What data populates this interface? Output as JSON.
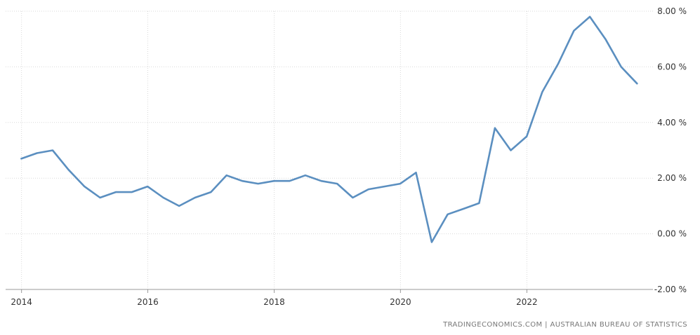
{
  "source_text": "TRADINGECONOMICS.COM  |  AUSTRALIAN BUREAU OF STATISTICS",
  "colors": {
    "series": "#5b8fc0",
    "grid": "#d9d9d9"
  },
  "chart_data": {
    "type": "line",
    "title": "",
    "xlabel": "",
    "ylabel": "",
    "ylim": [
      -2,
      8
    ],
    "xlim": [
      "2013-10-01",
      "2023-12-31"
    ],
    "grid": true,
    "legend": "none",
    "y_ticks": [
      {
        "value": 8,
        "label": "8.00 %"
      },
      {
        "value": 6,
        "label": "6.00 %"
      },
      {
        "value": 4,
        "label": "4.00 %"
      },
      {
        "value": 2,
        "label": "2.00 %"
      },
      {
        "value": 0,
        "label": "0.00 %"
      },
      {
        "value": -2,
        "label": "-2.00 %"
      }
    ],
    "x_ticks": [
      {
        "value": "2014-01-01",
        "label": "2014"
      },
      {
        "value": "2016-01-01",
        "label": "2016"
      },
      {
        "value": "2018-01-01",
        "label": "2018"
      },
      {
        "value": "2020-01-01",
        "label": "2020"
      },
      {
        "value": "2022-01-01",
        "label": "2022"
      }
    ],
    "series": [
      {
        "points": [
          {
            "x": "2013-12-31",
            "y": 2.7
          },
          {
            "x": "2014-03-31",
            "y": 2.9
          },
          {
            "x": "2014-06-30",
            "y": 3.0
          },
          {
            "x": "2014-09-30",
            "y": 2.3
          },
          {
            "x": "2014-12-31",
            "y": 1.7
          },
          {
            "x": "2015-03-31",
            "y": 1.3
          },
          {
            "x": "2015-06-30",
            "y": 1.5
          },
          {
            "x": "2015-09-30",
            "y": 1.5
          },
          {
            "x": "2015-12-31",
            "y": 1.7
          },
          {
            "x": "2016-03-31",
            "y": 1.3
          },
          {
            "x": "2016-06-30",
            "y": 1.0
          },
          {
            "x": "2016-09-30",
            "y": 1.3
          },
          {
            "x": "2016-12-31",
            "y": 1.5
          },
          {
            "x": "2017-03-31",
            "y": 2.1
          },
          {
            "x": "2017-06-30",
            "y": 1.9
          },
          {
            "x": "2017-09-30",
            "y": 1.8
          },
          {
            "x": "2017-12-31",
            "y": 1.9
          },
          {
            "x": "2018-03-31",
            "y": 1.9
          },
          {
            "x": "2018-06-30",
            "y": 2.1
          },
          {
            "x": "2018-09-30",
            "y": 1.9
          },
          {
            "x": "2018-12-31",
            "y": 1.8
          },
          {
            "x": "2019-03-31",
            "y": 1.3
          },
          {
            "x": "2019-06-30",
            "y": 1.6
          },
          {
            "x": "2019-09-30",
            "y": 1.7
          },
          {
            "x": "2019-12-31",
            "y": 1.8
          },
          {
            "x": "2020-03-31",
            "y": 2.2
          },
          {
            "x": "2020-06-30",
            "y": -0.3
          },
          {
            "x": "2020-09-30",
            "y": 0.7
          },
          {
            "x": "2020-12-31",
            "y": 0.9
          },
          {
            "x": "2021-03-31",
            "y": 1.1
          },
          {
            "x": "2021-06-30",
            "y": 3.8
          },
          {
            "x": "2021-09-30",
            "y": 3.0
          },
          {
            "x": "2021-12-31",
            "y": 3.5
          },
          {
            "x": "2022-03-31",
            "y": 5.1
          },
          {
            "x": "2022-06-30",
            "y": 6.1
          },
          {
            "x": "2022-09-30",
            "y": 7.3
          },
          {
            "x": "2022-12-31",
            "y": 7.8
          },
          {
            "x": "2023-03-31",
            "y": 7.0
          },
          {
            "x": "2023-06-30",
            "y": 6.0
          },
          {
            "x": "2023-09-30",
            "y": 5.4
          }
        ]
      }
    ]
  }
}
